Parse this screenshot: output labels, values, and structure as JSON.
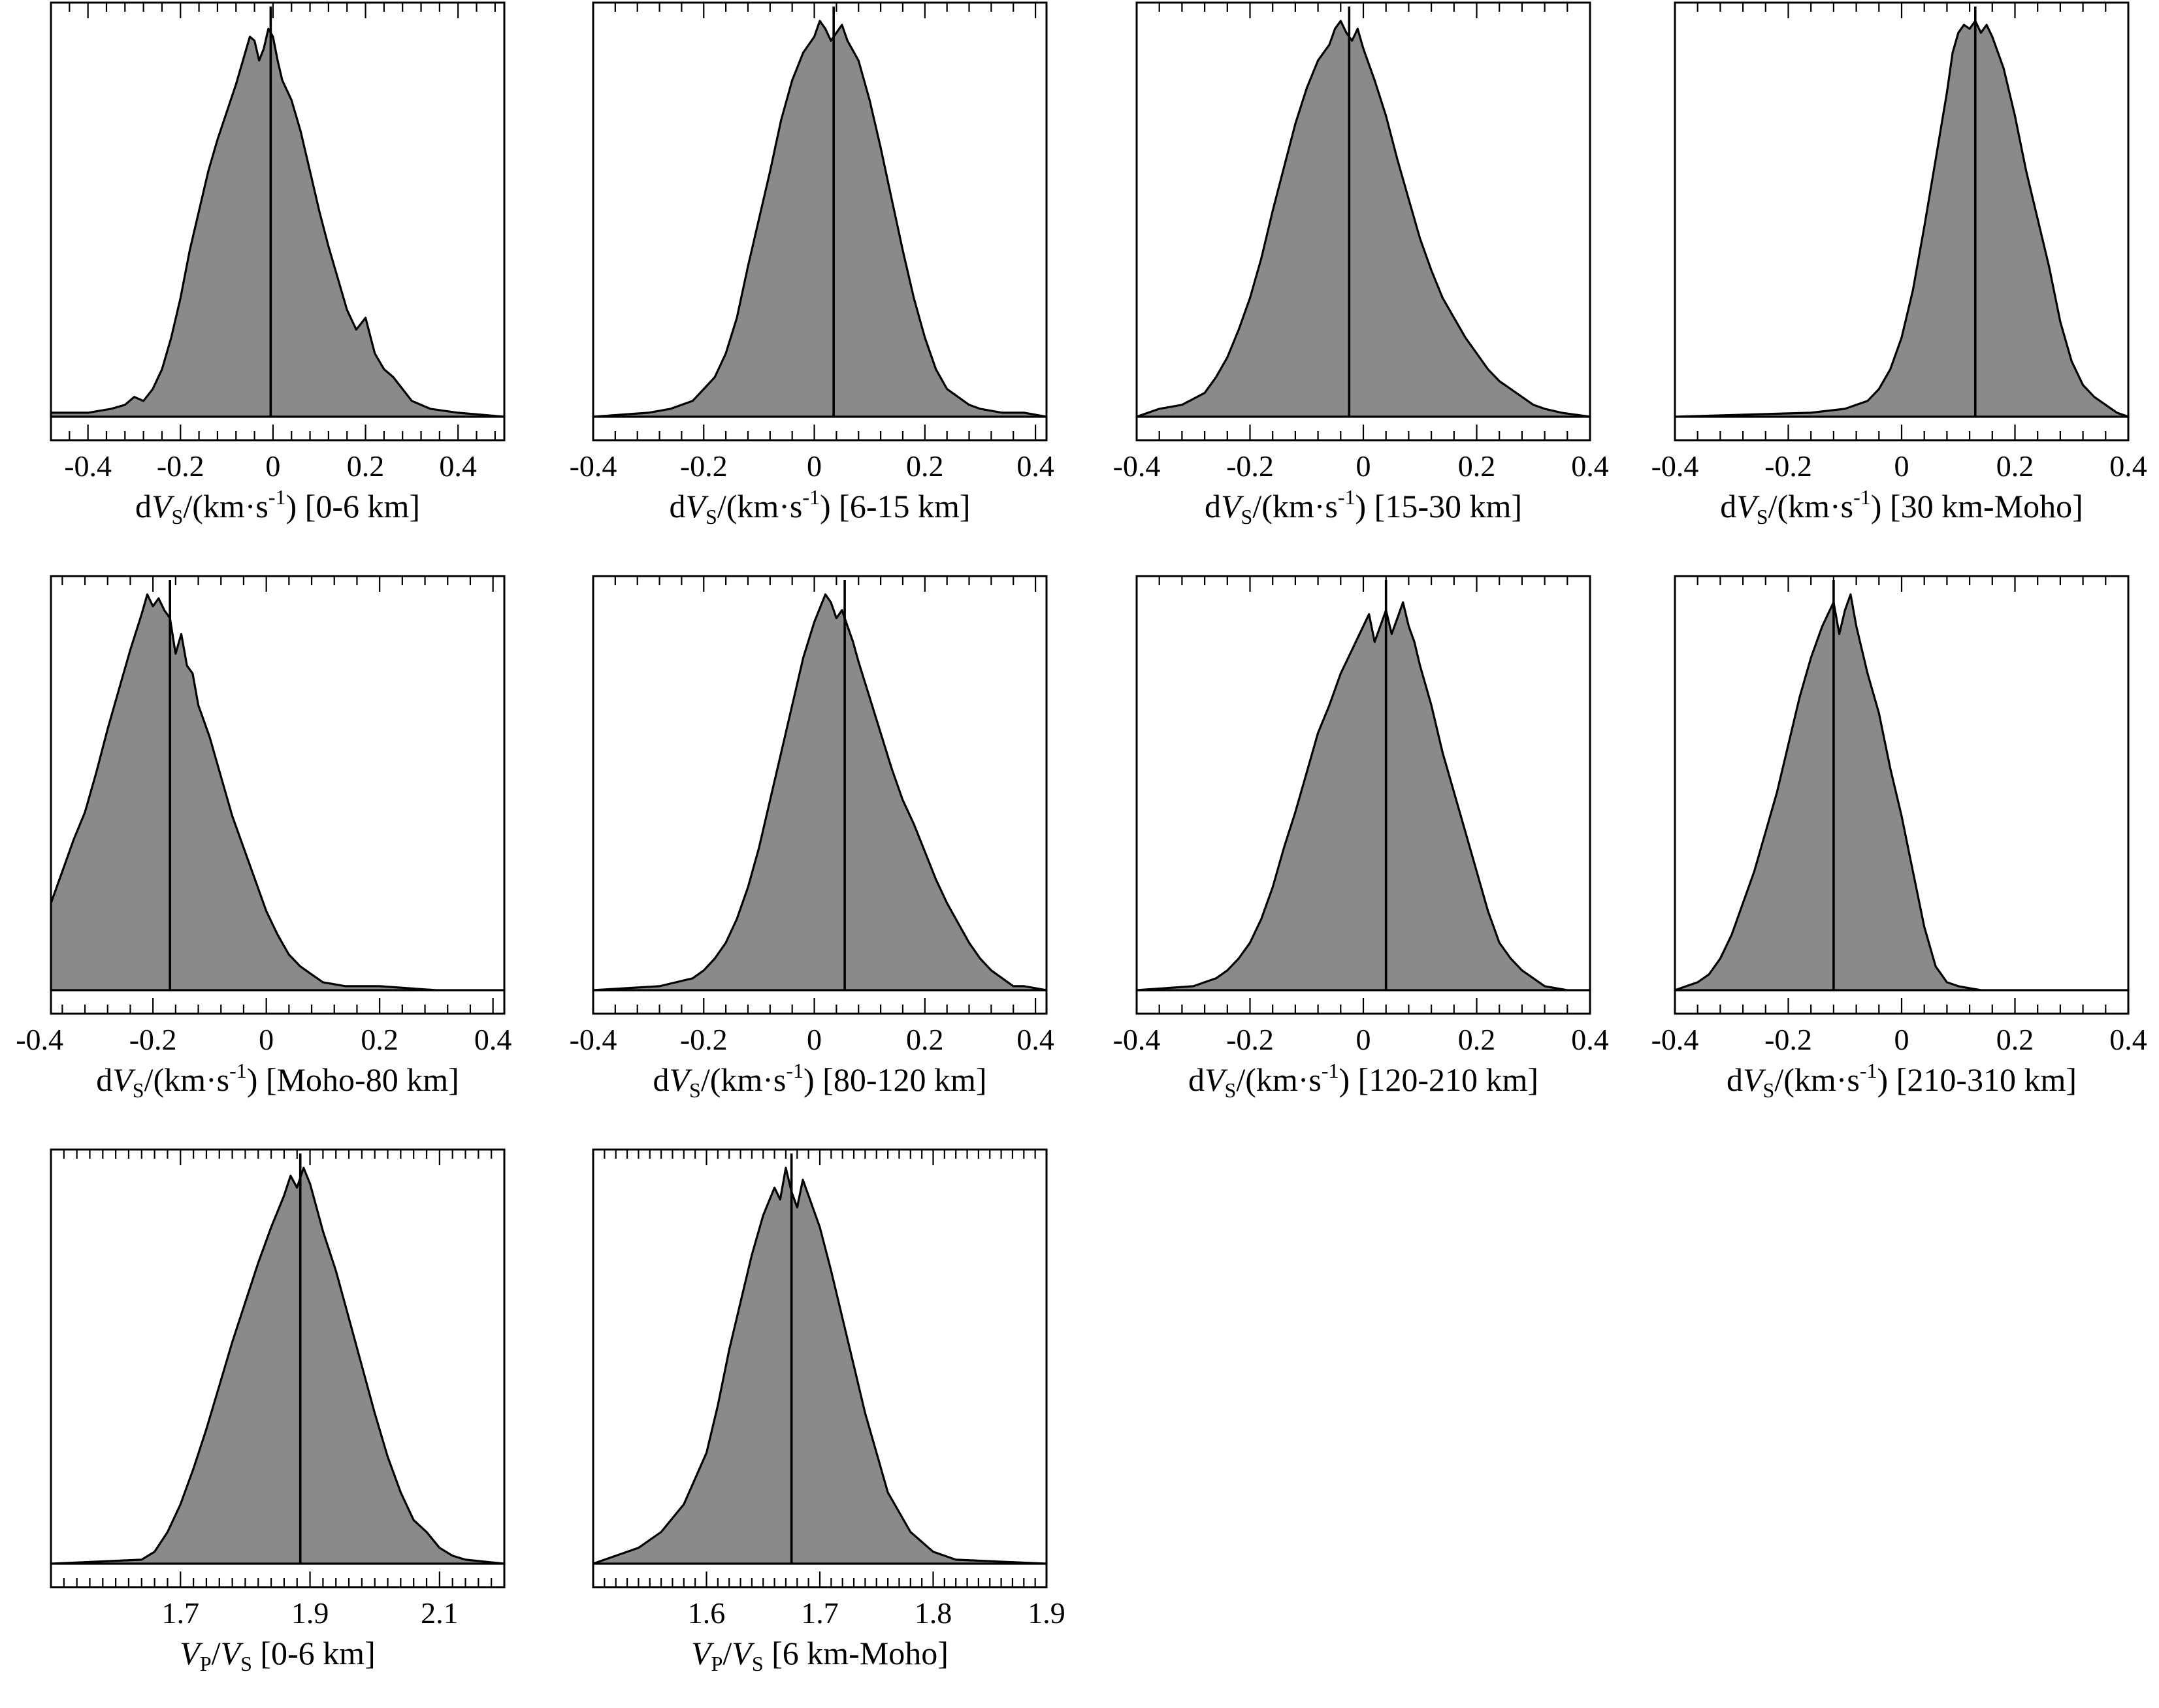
{
  "chart_data": [
    {
      "id": "p1",
      "type": "area",
      "xlabel_prefix": "d",
      "xlabel_var": "V",
      "xlabel_sub": "S",
      "xlabel_sep": "/(km·s",
      "xlabel_sup": "-1",
      "xlabel_tail": ") [0-6 km]",
      "xlim": [
        -0.48,
        0.5
      ],
      "tick_labels": [
        "-0.4",
        "-0.2",
        "0",
        "0.2",
        "0.4"
      ],
      "tick_values": [
        -0.4,
        -0.2,
        0,
        0.2,
        0.4
      ],
      "minor_step": 0.04,
      "series": {
        "x_start": -0.48,
        "x_end": 0.5,
        "x": [
          -0.48,
          -0.4,
          -0.35,
          -0.32,
          -0.3,
          -0.28,
          -0.26,
          -0.24,
          -0.22,
          -0.2,
          -0.18,
          -0.16,
          -0.14,
          -0.12,
          -0.1,
          -0.08,
          -0.06,
          -0.05,
          -0.04,
          -0.03,
          -0.02,
          -0.01,
          0,
          0.01,
          0.02,
          0.04,
          0.06,
          0.08,
          0.1,
          0.12,
          0.14,
          0.16,
          0.18,
          0.2,
          0.22,
          0.24,
          0.26,
          0.28,
          0.3,
          0.34,
          0.4,
          0.5
        ],
        "density": [
          0.01,
          0.01,
          0.02,
          0.03,
          0.05,
          0.04,
          0.07,
          0.12,
          0.2,
          0.3,
          0.42,
          0.52,
          0.62,
          0.7,
          0.77,
          0.84,
          0.92,
          0.96,
          0.95,
          0.9,
          0.93,
          0.98,
          0.96,
          0.9,
          0.85,
          0.8,
          0.72,
          0.62,
          0.52,
          0.43,
          0.35,
          0.27,
          0.22,
          0.25,
          0.16,
          0.12,
          0.1,
          0.07,
          0.04,
          0.02,
          0.01,
          0.0
        ]
      },
      "median": -0.005
    },
    {
      "id": "p2",
      "type": "area",
      "xlabel_prefix": "d",
      "xlabel_var": "V",
      "xlabel_sub": "S",
      "xlabel_sep": "/(km·s",
      "xlabel_sup": "-1",
      "xlabel_tail": ") [6-15 km]",
      "xlim": [
        -0.4,
        0.42
      ],
      "tick_labels": [
        "-0.4",
        "-0.2",
        "0",
        "0.2",
        "0.4"
      ],
      "tick_values": [
        -0.4,
        -0.2,
        0,
        0.2,
        0.4
      ],
      "minor_step": 0.04,
      "series": {
        "x_start": -0.4,
        "x_end": 0.42,
        "x": [
          -0.4,
          -0.3,
          -0.26,
          -0.22,
          -0.2,
          -0.18,
          -0.16,
          -0.14,
          -0.12,
          -0.1,
          -0.08,
          -0.06,
          -0.04,
          -0.02,
          0,
          0.01,
          0.02,
          0.03,
          0.04,
          0.05,
          0.06,
          0.08,
          0.1,
          0.12,
          0.14,
          0.16,
          0.18,
          0.2,
          0.22,
          0.24,
          0.26,
          0.28,
          0.3,
          0.34,
          0.38,
          0.42
        ],
        "density": [
          0.0,
          0.01,
          0.02,
          0.04,
          0.07,
          0.1,
          0.16,
          0.25,
          0.38,
          0.5,
          0.62,
          0.75,
          0.85,
          0.92,
          0.96,
          1.0,
          0.98,
          0.95,
          0.97,
          0.99,
          0.95,
          0.9,
          0.8,
          0.68,
          0.55,
          0.42,
          0.3,
          0.2,
          0.12,
          0.07,
          0.05,
          0.03,
          0.02,
          0.01,
          0.01,
          0.0
        ]
      },
      "median": 0.035
    },
    {
      "id": "p3",
      "type": "area",
      "xlabel_prefix": "d",
      "xlabel_var": "V",
      "xlabel_sub": "S",
      "xlabel_sep": "/(km·s",
      "xlabel_sup": "-1",
      "xlabel_tail": ") [15-30 km]",
      "xlim": [
        -0.4,
        0.4
      ],
      "tick_labels": [
        "-0.4",
        "-0.2",
        "0",
        "0.2",
        "0.4"
      ],
      "tick_values": [
        -0.4,
        -0.2,
        0,
        0.2,
        0.4
      ],
      "minor_step": 0.04,
      "series": {
        "x_start": -0.4,
        "x_end": 0.4,
        "x": [
          -0.4,
          -0.36,
          -0.32,
          -0.28,
          -0.26,
          -0.24,
          -0.22,
          -0.2,
          -0.18,
          -0.16,
          -0.14,
          -0.12,
          -0.1,
          -0.08,
          -0.06,
          -0.05,
          -0.04,
          -0.03,
          -0.02,
          -0.01,
          0,
          0.02,
          0.04,
          0.06,
          0.08,
          0.1,
          0.12,
          0.14,
          0.16,
          0.18,
          0.2,
          0.22,
          0.24,
          0.26,
          0.28,
          0.3,
          0.32,
          0.35,
          0.4
        ],
        "density": [
          0.0,
          0.02,
          0.03,
          0.06,
          0.1,
          0.15,
          0.22,
          0.3,
          0.4,
          0.52,
          0.63,
          0.74,
          0.83,
          0.9,
          0.94,
          0.98,
          1.0,
          0.97,
          0.95,
          0.98,
          0.93,
          0.85,
          0.76,
          0.65,
          0.55,
          0.45,
          0.37,
          0.3,
          0.25,
          0.2,
          0.16,
          0.12,
          0.09,
          0.07,
          0.05,
          0.03,
          0.02,
          0.01,
          0.0
        ]
      },
      "median": -0.025
    },
    {
      "id": "p4",
      "type": "area",
      "xlabel_prefix": "d",
      "xlabel_var": "V",
      "xlabel_sub": "S",
      "xlabel_sep": "/(km·s",
      "xlabel_sup": "-1",
      "xlabel_tail": ") [30 km-Moho]",
      "xlim": [
        -0.4,
        0.4
      ],
      "tick_labels": [
        "-0.4",
        "-0.2",
        "0",
        "0.2",
        "0.4"
      ],
      "tick_values": [
        -0.4,
        -0.2,
        0,
        0.2,
        0.4
      ],
      "minor_step": 0.04,
      "series": {
        "x_start": -0.4,
        "x_end": 0.4,
        "x": [
          -0.4,
          -0.16,
          -0.1,
          -0.06,
          -0.04,
          -0.02,
          0,
          0.02,
          0.04,
          0.06,
          0.08,
          0.09,
          0.1,
          0.11,
          0.12,
          0.13,
          0.14,
          0.15,
          0.16,
          0.18,
          0.2,
          0.22,
          0.24,
          0.26,
          0.28,
          0.3,
          0.32,
          0.34,
          0.36,
          0.38,
          0.4
        ],
        "density": [
          0.0,
          0.01,
          0.02,
          0.04,
          0.07,
          0.12,
          0.2,
          0.32,
          0.48,
          0.65,
          0.82,
          0.92,
          0.97,
          0.99,
          0.98,
          1.0,
          0.97,
          0.99,
          0.96,
          0.88,
          0.76,
          0.62,
          0.5,
          0.38,
          0.24,
          0.14,
          0.08,
          0.05,
          0.03,
          0.01,
          0.0
        ]
      },
      "median": 0.13
    },
    {
      "id": "p5",
      "type": "area",
      "xlabel_prefix": "d",
      "xlabel_var": "V",
      "xlabel_sub": "S",
      "xlabel_sep": "/(km·s",
      "xlabel_sup": "-1",
      "xlabel_tail": ") [Moho-80 km]",
      "xlim": [
        -0.38,
        0.42
      ],
      "tick_labels": [
        "-0.4",
        "-0.2",
        "0",
        "0.2",
        "0.4"
      ],
      "tick_values": [
        -0.4,
        -0.2,
        0,
        0.2,
        0.4
      ],
      "minor_step": 0.04,
      "series": {
        "x_start": -0.38,
        "x_end": 0.42,
        "x": [
          -0.38,
          -0.36,
          -0.34,
          -0.32,
          -0.3,
          -0.28,
          -0.26,
          -0.24,
          -0.22,
          -0.21,
          -0.2,
          -0.19,
          -0.18,
          -0.17,
          -0.16,
          -0.15,
          -0.14,
          -0.13,
          -0.12,
          -0.1,
          -0.08,
          -0.06,
          -0.04,
          -0.02,
          0,
          0.02,
          0.04,
          0.06,
          0.08,
          0.1,
          0.14,
          0.2,
          0.3,
          0.42
        ],
        "density": [
          0.22,
          0.3,
          0.38,
          0.45,
          0.55,
          0.66,
          0.76,
          0.86,
          0.95,
          1.0,
          0.97,
          0.99,
          0.96,
          0.94,
          0.85,
          0.9,
          0.82,
          0.8,
          0.72,
          0.64,
          0.54,
          0.44,
          0.36,
          0.28,
          0.2,
          0.14,
          0.09,
          0.06,
          0.04,
          0.02,
          0.01,
          0.01,
          0.0,
          0.0
        ]
      },
      "median": -0.17
    },
    {
      "id": "p6",
      "type": "area",
      "xlabel_prefix": "d",
      "xlabel_var": "V",
      "xlabel_sub": "S",
      "xlabel_sep": "/(km·s",
      "xlabel_sup": "-1",
      "xlabel_tail": ") [80-120 km]",
      "xlim": [
        -0.4,
        0.42
      ],
      "tick_labels": [
        "-0.4",
        "-0.2",
        "0",
        "0.2",
        "0.4"
      ],
      "tick_values": [
        -0.4,
        -0.2,
        0,
        0.2,
        0.4
      ],
      "minor_step": 0.04,
      "series": {
        "x_start": -0.4,
        "x_end": 0.42,
        "x": [
          -0.4,
          -0.28,
          -0.22,
          -0.2,
          -0.18,
          -0.16,
          -0.14,
          -0.12,
          -0.1,
          -0.08,
          -0.06,
          -0.04,
          -0.02,
          0,
          0.02,
          0.03,
          0.04,
          0.05,
          0.06,
          0.07,
          0.08,
          0.1,
          0.12,
          0.14,
          0.16,
          0.18,
          0.2,
          0.22,
          0.24,
          0.26,
          0.28,
          0.3,
          0.32,
          0.34,
          0.36,
          0.38,
          0.42
        ],
        "density": [
          0.0,
          0.01,
          0.03,
          0.05,
          0.08,
          0.12,
          0.18,
          0.26,
          0.36,
          0.48,
          0.6,
          0.72,
          0.84,
          0.93,
          1.0,
          0.98,
          0.94,
          0.96,
          0.92,
          0.88,
          0.83,
          0.74,
          0.65,
          0.56,
          0.48,
          0.42,
          0.35,
          0.28,
          0.22,
          0.17,
          0.12,
          0.08,
          0.05,
          0.03,
          0.01,
          0.01,
          0.0
        ]
      },
      "median": 0.055
    },
    {
      "id": "p7",
      "type": "area",
      "xlabel_prefix": "d",
      "xlabel_var": "V",
      "xlabel_sub": "S",
      "xlabel_sep": "/(km·s",
      "xlabel_sup": "-1",
      "xlabel_tail": ") [120-210 km]",
      "xlim": [
        -0.4,
        0.4
      ],
      "tick_labels": [
        "-0.4",
        "-0.2",
        "0",
        "0.2",
        "0.4"
      ],
      "tick_values": [
        -0.4,
        -0.2,
        0,
        0.2,
        0.4
      ],
      "minor_step": 0.04,
      "series": {
        "x_start": -0.4,
        "x_end": 0.4,
        "x": [
          -0.4,
          -0.3,
          -0.26,
          -0.24,
          -0.22,
          -0.2,
          -0.18,
          -0.16,
          -0.14,
          -0.12,
          -0.1,
          -0.08,
          -0.06,
          -0.04,
          -0.02,
          0,
          0.01,
          0.02,
          0.03,
          0.04,
          0.05,
          0.06,
          0.07,
          0.08,
          0.09,
          0.1,
          0.12,
          0.14,
          0.16,
          0.18,
          0.2,
          0.22,
          0.24,
          0.26,
          0.28,
          0.3,
          0.32,
          0.36,
          0.4
        ],
        "density": [
          0.0,
          0.01,
          0.03,
          0.05,
          0.08,
          0.12,
          0.18,
          0.26,
          0.36,
          0.45,
          0.55,
          0.65,
          0.72,
          0.8,
          0.86,
          0.92,
          0.95,
          0.88,
          0.92,
          0.96,
          0.9,
          0.94,
          0.98,
          0.92,
          0.88,
          0.82,
          0.72,
          0.6,
          0.5,
          0.4,
          0.3,
          0.2,
          0.12,
          0.08,
          0.05,
          0.03,
          0.01,
          0.0,
          0.0
        ]
      },
      "median": 0.04
    },
    {
      "id": "p8",
      "type": "area",
      "xlabel_prefix": "d",
      "xlabel_var": "V",
      "xlabel_sub": "S",
      "xlabel_sep": "/(km·s",
      "xlabel_sup": "-1",
      "xlabel_tail": ") [210-310 km]",
      "xlim": [
        -0.4,
        0.4
      ],
      "tick_labels": [
        "-0.4",
        "-0.2",
        "0",
        "0.2",
        "0.4"
      ],
      "tick_values": [
        -0.4,
        -0.2,
        0,
        0.2,
        0.4
      ],
      "minor_step": 0.04,
      "series": {
        "x_start": -0.4,
        "x_end": 0.4,
        "x": [
          -0.4,
          -0.38,
          -0.36,
          -0.34,
          -0.32,
          -0.3,
          -0.28,
          -0.26,
          -0.24,
          -0.22,
          -0.2,
          -0.18,
          -0.16,
          -0.14,
          -0.13,
          -0.12,
          -0.11,
          -0.1,
          -0.09,
          -0.08,
          -0.06,
          -0.04,
          -0.02,
          0,
          0.02,
          0.04,
          0.06,
          0.08,
          0.1,
          0.14,
          0.2,
          0.4
        ],
        "density": [
          0.0,
          0.01,
          0.02,
          0.04,
          0.08,
          0.14,
          0.22,
          0.3,
          0.4,
          0.5,
          0.62,
          0.74,
          0.84,
          0.92,
          0.95,
          0.98,
          0.9,
          0.96,
          1.0,
          0.92,
          0.8,
          0.7,
          0.56,
          0.44,
          0.3,
          0.16,
          0.06,
          0.02,
          0.01,
          0.0,
          0.0,
          0.0
        ]
      },
      "median": -0.12
    },
    {
      "id": "p9",
      "type": "area",
      "xlabel_prefix": "",
      "xlabel_var": "V",
      "xlabel_sub": "P",
      "xlabel_sep": "/",
      "xlabel_var2": "V",
      "xlabel_sub2": "S",
      "xlabel_tail": " [0-6 km]",
      "xlim": [
        1.5,
        2.2
      ],
      "tick_labels": [
        "1.7",
        "1.9",
        "2.1"
      ],
      "tick_values": [
        1.7,
        1.9,
        2.1
      ],
      "minor_step": 0.02,
      "series": {
        "x_start": 1.5,
        "x_end": 2.2,
        "x": [
          1.5,
          1.64,
          1.66,
          1.68,
          1.7,
          1.72,
          1.74,
          1.76,
          1.78,
          1.8,
          1.82,
          1.84,
          1.86,
          1.87,
          1.88,
          1.89,
          1.9,
          1.91,
          1.92,
          1.94,
          1.96,
          1.98,
          2.0,
          2.02,
          2.04,
          2.06,
          2.08,
          2.1,
          2.12,
          2.14,
          2.2
        ],
        "density": [
          0.0,
          0.01,
          0.03,
          0.08,
          0.15,
          0.24,
          0.34,
          0.45,
          0.56,
          0.66,
          0.76,
          0.85,
          0.93,
          0.98,
          0.95,
          1.0,
          0.96,
          0.9,
          0.84,
          0.74,
          0.62,
          0.5,
          0.38,
          0.27,
          0.18,
          0.11,
          0.08,
          0.04,
          0.02,
          0.01,
          0.0
        ]
      },
      "median": 1.885
    },
    {
      "id": "p10",
      "type": "area",
      "xlabel_prefix": "",
      "xlabel_var": "V",
      "xlabel_sub": "P",
      "xlabel_sep": "/",
      "xlabel_var2": "V",
      "xlabel_sub2": "S",
      "xlabel_tail": " [6 km-Moho]",
      "xlim": [
        1.5,
        1.9
      ],
      "tick_labels": [
        "1.6",
        "1.7",
        "1.8",
        "1.9"
      ],
      "tick_values": [
        1.6,
        1.7,
        1.8,
        1.9
      ],
      "minor_step": 0.01,
      "series": {
        "x_start": 1.5,
        "x_end": 1.9,
        "x": [
          1.5,
          1.52,
          1.54,
          1.56,
          1.58,
          1.6,
          1.61,
          1.62,
          1.63,
          1.64,
          1.65,
          1.66,
          1.665,
          1.67,
          1.675,
          1.68,
          1.685,
          1.69,
          1.7,
          1.71,
          1.72,
          1.73,
          1.74,
          1.75,
          1.76,
          1.78,
          1.8,
          1.82,
          1.9
        ],
        "density": [
          0.0,
          0.02,
          0.04,
          0.08,
          0.15,
          0.28,
          0.4,
          0.54,
          0.66,
          0.78,
          0.88,
          0.95,
          0.92,
          1.0,
          0.94,
          0.9,
          0.97,
          0.93,
          0.85,
          0.74,
          0.62,
          0.5,
          0.38,
          0.28,
          0.18,
          0.08,
          0.03,
          0.01,
          0.0
        ]
      },
      "median": 1.675
    }
  ]
}
